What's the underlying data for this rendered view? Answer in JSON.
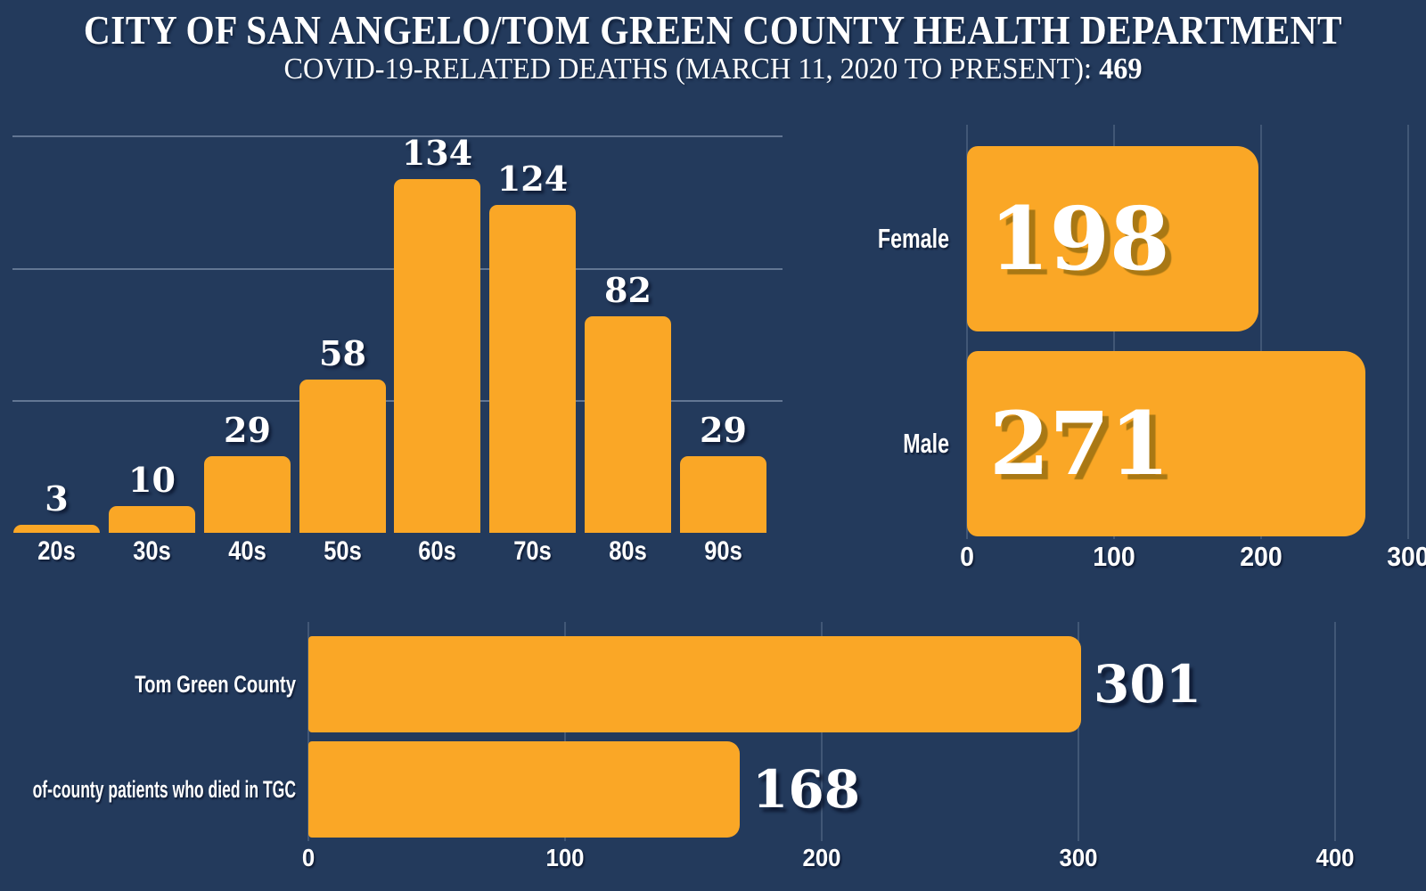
{
  "header": {
    "title": "CITY OF SAN ANGELO/TOM GREEN COUNTY HEALTH DEPARTMENT",
    "subtitle_prefix": "COVID-19-RELATED DEATHS (MARCH 11, 2020 TO PRESENT): ",
    "total_deaths": "469"
  },
  "colors": {
    "background": "#233A5C",
    "bar": "#FAA726",
    "text": "#FFFFFF",
    "gridline": "rgba(175,192,216,0.45)",
    "number_shadow_on_bar": "#A97814"
  },
  "chart_data": [
    {
      "id": "deaths_by_age",
      "type": "bar",
      "orientation": "vertical",
      "categories": [
        "20s",
        "30s",
        "40s",
        "50s",
        "60s",
        "70s",
        "80s",
        "90s"
      ],
      "values": [
        3,
        10,
        29,
        58,
        134,
        124,
        82,
        29
      ],
      "ylim": [
        0,
        150
      ],
      "gridline_values": [
        50,
        100,
        150
      ],
      "grid": "horizontal",
      "title": "",
      "xlabel": "",
      "ylabel": ""
    },
    {
      "id": "deaths_by_gender",
      "type": "bar",
      "orientation": "horizontal",
      "categories": [
        "Female",
        "Male"
      ],
      "values": [
        198,
        271
      ],
      "xlim": [
        0,
        300
      ],
      "xticks": [
        0,
        100,
        200,
        300
      ],
      "grid": "vertical",
      "value_label_position": "inside-left",
      "title": "",
      "xlabel": "",
      "ylabel": ""
    },
    {
      "id": "deaths_by_location",
      "type": "bar",
      "orientation": "horizontal",
      "categories": [
        "Tom Green County",
        "of-county patients who died in TGC"
      ],
      "values": [
        301,
        168
      ],
      "xlim": [
        0,
        400
      ],
      "xticks": [
        0,
        100,
        200,
        300,
        400
      ],
      "grid": "vertical",
      "value_label_position": "outside-right",
      "title": "",
      "xlabel": "",
      "ylabel": ""
    }
  ]
}
